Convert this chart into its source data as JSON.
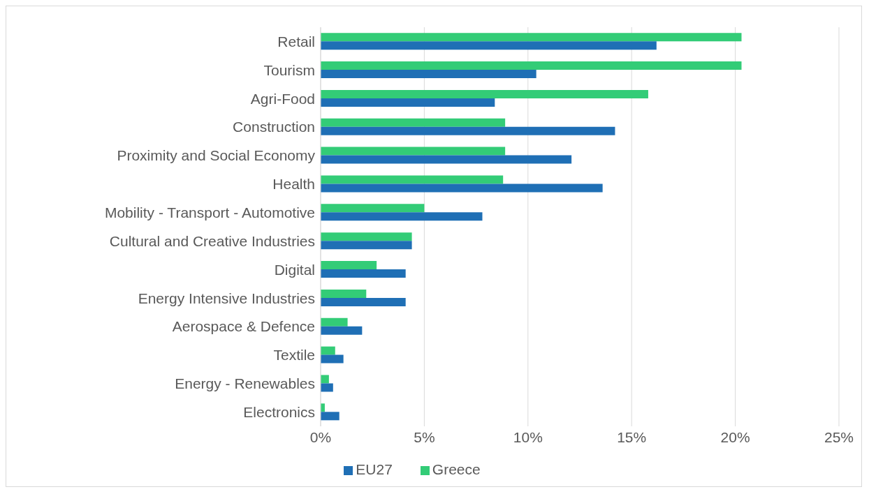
{
  "chart_data": {
    "type": "bar",
    "orientation": "horizontal",
    "categories": [
      "Retail",
      "Tourism",
      "Agri-Food",
      "Construction",
      "Proximity and Social Economy",
      "Health",
      "Mobility - Transport - Automotive",
      "Cultural and Creative Industries",
      "Digital",
      "Energy Intensive Industries",
      "Aerospace & Defence",
      "Textile",
      "Energy - Renewables",
      "Electronics"
    ],
    "series": [
      {
        "name": "Greece",
        "color": "#33cc77",
        "values": [
          20.3,
          20.3,
          15.8,
          8.9,
          8.9,
          8.8,
          5.0,
          4.4,
          2.7,
          2.2,
          1.3,
          0.7,
          0.4,
          0.2
        ]
      },
      {
        "name": "EU27",
        "color": "#1f6fb5",
        "values": [
          16.2,
          10.4,
          8.4,
          14.2,
          12.1,
          13.6,
          7.8,
          4.4,
          4.1,
          4.1,
          2.0,
          1.1,
          0.6,
          0.9
        ]
      }
    ],
    "xlim": [
      0,
      25
    ],
    "xticks": [
      {
        "value": 0,
        "label": "0%"
      },
      {
        "value": 5,
        "label": "5%"
      },
      {
        "value": 10,
        "label": "10%"
      },
      {
        "value": 15,
        "label": "15%"
      },
      {
        "value": 20,
        "label": "20%"
      },
      {
        "value": 25,
        "label": "25%"
      }
    ],
    "grid": "x",
    "legend": "bottom"
  }
}
